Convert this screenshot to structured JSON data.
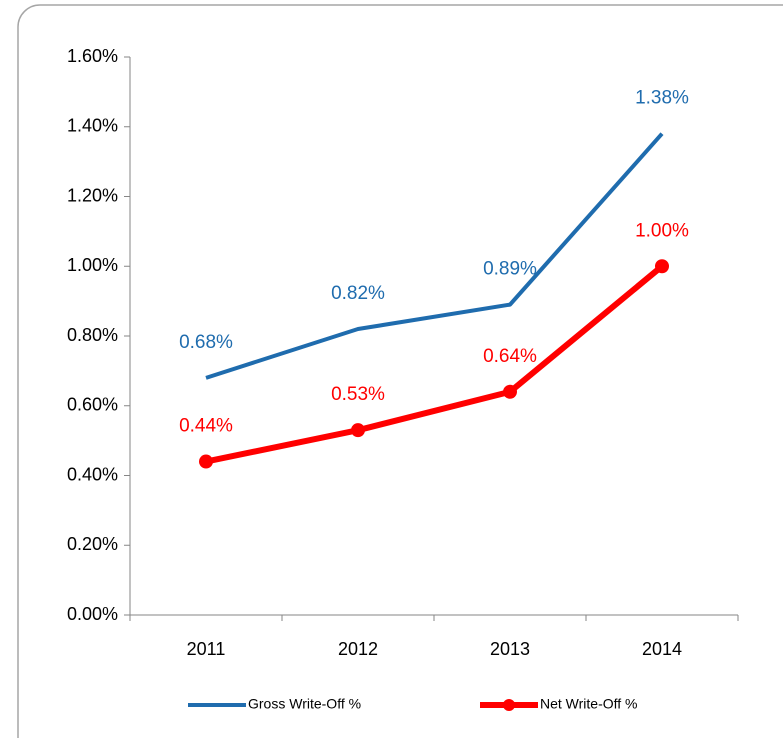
{
  "chart_data": {
    "type": "line",
    "categories": [
      "2011",
      "2012",
      "2013",
      "2014"
    ],
    "series": [
      {
        "name": "Gross Write-Off %",
        "color": "#1f6cae",
        "marker": false,
        "values": [
          0.68,
          0.82,
          0.89,
          1.38
        ],
        "value_labels": [
          "0.68%",
          "0.82%",
          "0.89%",
          "1.38%"
        ]
      },
      {
        "name": "Net Write-Off %",
        "color": "#ff0000",
        "marker": true,
        "values": [
          0.44,
          0.53,
          0.64,
          1.0
        ],
        "value_labels": [
          "0.44%",
          "0.53%",
          "0.64%",
          "1.00%"
        ]
      }
    ],
    "ylim": [
      0,
      1.6
    ],
    "yticks": [
      {
        "value": 0,
        "label": "0.00%"
      },
      {
        "value": 0.2,
        "label": "0.20%"
      },
      {
        "value": 0.4,
        "label": "0.40%"
      },
      {
        "value": 0.6,
        "label": "0.60%"
      },
      {
        "value": 0.8,
        "label": "0.80%"
      },
      {
        "value": 1.0,
        "label": "1.00%"
      },
      {
        "value": 1.2,
        "label": "1.20%"
      },
      {
        "value": 1.4,
        "label": "1.40%"
      },
      {
        "value": 1.6,
        "label": "1.60%"
      }
    ],
    "grid": false,
    "legend": "bottom"
  }
}
